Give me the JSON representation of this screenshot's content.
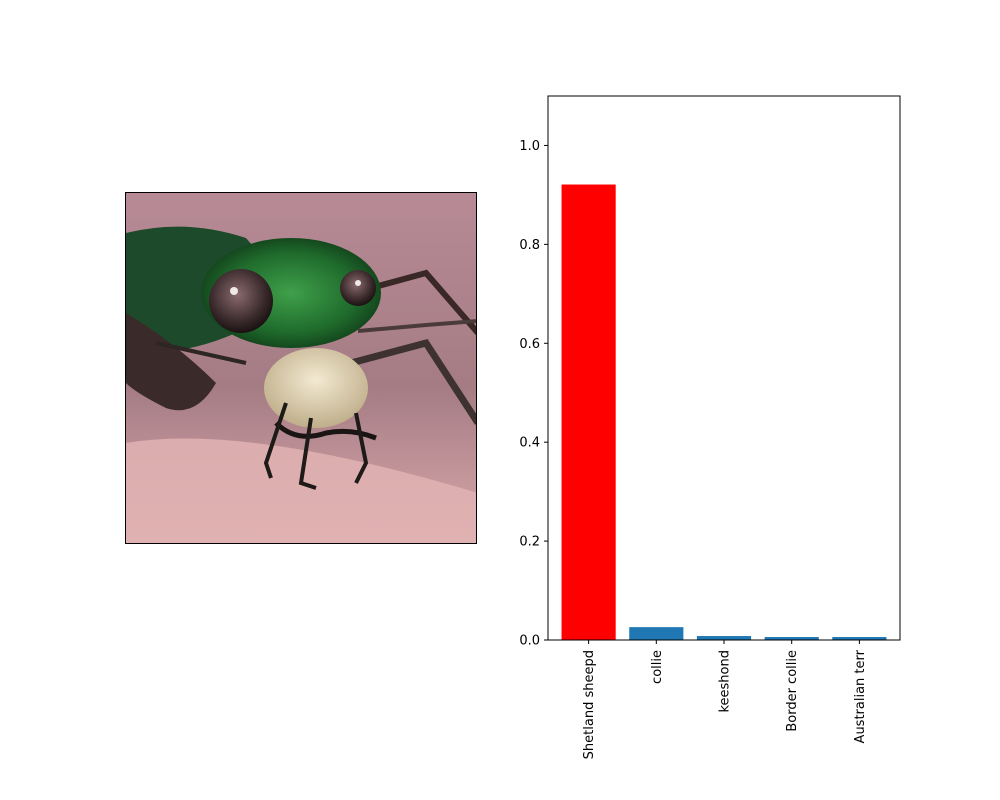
{
  "image_panel": {
    "subject": "green tiger beetle close-up photograph"
  },
  "colors": {
    "highlight_bar": "#ff0000",
    "default_bar": "#1f77b4"
  },
  "chart_data": {
    "type": "bar",
    "categories": [
      "Shetland sheepd",
      "collie",
      "keeshond",
      "Border collie",
      "Australian terr"
    ],
    "values": [
      0.921,
      0.026,
      0.008,
      0.006,
      0.006
    ],
    "highlight_index": 0,
    "ylim": [
      0,
      1.1
    ],
    "yticks": [
      0.0,
      0.2,
      0.4,
      0.6,
      0.8,
      1.0
    ],
    "ytick_labels": [
      "0.0",
      "0.2",
      "0.4",
      "0.6",
      "0.8",
      "1.0"
    ],
    "grid": false,
    "title": "",
    "xlabel": "",
    "ylabel": ""
  }
}
